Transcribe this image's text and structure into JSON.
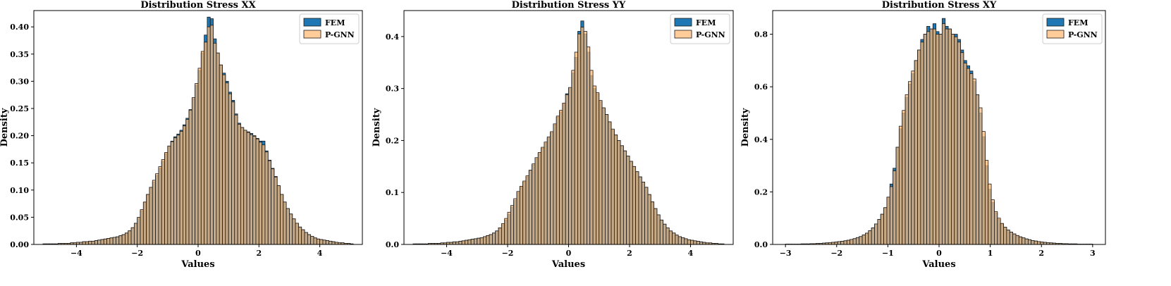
{
  "colors": {
    "FEM": "#1f77b4",
    "P-GNN": "#ffbb78",
    "edge": "#1a1a1a"
  },
  "chart_data": [
    {
      "type": "bar",
      "subtype": "overlaid-histogram",
      "title": "Distribution Stress XX",
      "xlabel": "Values",
      "ylabel": "Density",
      "xlim": [
        -5.4,
        5.4
      ],
      "ylim": [
        0,
        0.43
      ],
      "xticks": [
        "−4",
        "−2",
        "0",
        "2",
        "4"
      ],
      "xtick_values": [
        -4,
        -2,
        0,
        2,
        4
      ],
      "yticks": [
        "0.00",
        "0.05",
        "0.10",
        "0.15",
        "0.20",
        "0.25",
        "0.30",
        "0.35",
        "0.40"
      ],
      "ytick_values": [
        0,
        0.05,
        0.1,
        0.15,
        0.2,
        0.25,
        0.3,
        0.35,
        0.4
      ],
      "legend": [
        "FEM",
        "P-GNN"
      ],
      "legend_position": "top-right",
      "grid": false,
      "bins": {
        "start": -5.1,
        "width": 0.1,
        "count": 102
      },
      "series": [
        {
          "name": "FEM",
          "values": [
            0.001,
            0.001,
            0.001,
            0.001,
            0.001,
            0.002,
            0.002,
            0.002,
            0.002,
            0.003,
            0.003,
            0.004,
            0.004,
            0.005,
            0.005,
            0.006,
            0.006,
            0.007,
            0.008,
            0.009,
            0.01,
            0.011,
            0.012,
            0.013,
            0.014,
            0.016,
            0.018,
            0.021,
            0.025,
            0.03,
            0.038,
            0.048,
            0.062,
            0.077,
            0.092,
            0.105,
            0.115,
            0.127,
            0.14,
            0.153,
            0.167,
            0.18,
            0.19,
            0.198,
            0.203,
            0.21,
            0.22,
            0.232,
            0.248,
            0.268,
            0.293,
            0.32,
            0.352,
            0.385,
            0.418,
            0.415,
            0.378,
            0.352,
            0.33,
            0.315,
            0.3,
            0.28,
            0.265,
            0.24,
            0.223,
            0.215,
            0.21,
            0.207,
            0.204,
            0.2,
            0.195,
            0.19,
            0.19,
            0.172,
            0.155,
            0.14,
            0.125,
            0.108,
            0.092,
            0.078,
            0.066,
            0.056,
            0.047,
            0.039,
            0.032,
            0.027,
            0.022,
            0.018,
            0.015,
            0.012,
            0.01,
            0.009,
            0.008,
            0.007,
            0.006,
            0.005,
            0.004,
            0.003,
            0.003,
            0.002,
            0.002,
            0.001
          ]
        },
        {
          "name": "P-GNN",
          "values": [
            0.001,
            0.001,
            0.001,
            0.001,
            0.001,
            0.002,
            0.002,
            0.002,
            0.002,
            0.003,
            0.003,
            0.004,
            0.004,
            0.005,
            0.005,
            0.006,
            0.006,
            0.007,
            0.008,
            0.009,
            0.01,
            0.011,
            0.012,
            0.013,
            0.014,
            0.016,
            0.018,
            0.021,
            0.025,
            0.031,
            0.039,
            0.05,
            0.064,
            0.078,
            0.092,
            0.105,
            0.118,
            0.13,
            0.143,
            0.156,
            0.169,
            0.181,
            0.189,
            0.196,
            0.201,
            0.208,
            0.218,
            0.23,
            0.247,
            0.27,
            0.296,
            0.324,
            0.355,
            0.372,
            0.4,
            0.403,
            0.37,
            0.352,
            0.33,
            0.312,
            0.297,
            0.277,
            0.262,
            0.238,
            0.221,
            0.215,
            0.21,
            0.206,
            0.202,
            0.199,
            0.194,
            0.188,
            0.183,
            0.17,
            0.154,
            0.139,
            0.124,
            0.108,
            0.092,
            0.078,
            0.066,
            0.056,
            0.047,
            0.039,
            0.032,
            0.027,
            0.022,
            0.018,
            0.015,
            0.012,
            0.01,
            0.009,
            0.008,
            0.007,
            0.006,
            0.005,
            0.004,
            0.003,
            0.003,
            0.002,
            0.002,
            0.001
          ]
        }
      ]
    },
    {
      "type": "bar",
      "subtype": "overlaid-histogram",
      "title": "Distribution Stress YY",
      "xlabel": "Values",
      "ylabel": "Density",
      "xlim": [
        -5.4,
        5.4
      ],
      "ylim": [
        0,
        0.45
      ],
      "xticks": [
        "−4",
        "−2",
        "0",
        "2",
        "4"
      ],
      "xtick_values": [
        -4,
        -2,
        0,
        2,
        4
      ],
      "yticks": [
        "0.0",
        "0.1",
        "0.2",
        "0.3",
        "0.4"
      ],
      "ytick_values": [
        0,
        0.1,
        0.2,
        0.3,
        0.4
      ],
      "legend": [
        "FEM",
        "P-GNN"
      ],
      "legend_position": "top-right",
      "grid": false,
      "bins": {
        "start": -5.1,
        "width": 0.1,
        "count": 102
      },
      "series": [
        {
          "name": "FEM",
          "values": [
            0.001,
            0.001,
            0.001,
            0.001,
            0.001,
            0.002,
            0.002,
            0.002,
            0.002,
            0.003,
            0.003,
            0.004,
            0.004,
            0.005,
            0.005,
            0.006,
            0.007,
            0.008,
            0.009,
            0.01,
            0.011,
            0.012,
            0.013,
            0.015,
            0.017,
            0.019,
            0.022,
            0.026,
            0.031,
            0.038,
            0.047,
            0.058,
            0.072,
            0.085,
            0.1,
            0.11,
            0.12,
            0.13,
            0.142,
            0.153,
            0.165,
            0.175,
            0.185,
            0.195,
            0.205,
            0.215,
            0.23,
            0.245,
            0.255,
            0.27,
            0.29,
            0.3,
            0.33,
            0.36,
            0.41,
            0.43,
            0.405,
            0.37,
            0.325,
            0.3,
            0.29,
            0.275,
            0.262,
            0.25,
            0.235,
            0.22,
            0.21,
            0.2,
            0.19,
            0.18,
            0.17,
            0.16,
            0.15,
            0.14,
            0.13,
            0.12,
            0.11,
            0.096,
            0.082,
            0.069,
            0.057,
            0.047,
            0.039,
            0.032,
            0.026,
            0.022,
            0.018,
            0.015,
            0.013,
            0.011,
            0.009,
            0.008,
            0.007,
            0.006,
            0.005,
            0.004,
            0.003,
            0.003,
            0.002,
            0.002,
            0.001,
            0.001
          ]
        },
        {
          "name": "P-GNN",
          "values": [
            0.001,
            0.001,
            0.001,
            0.001,
            0.001,
            0.002,
            0.002,
            0.002,
            0.002,
            0.003,
            0.003,
            0.004,
            0.004,
            0.005,
            0.005,
            0.006,
            0.007,
            0.008,
            0.009,
            0.01,
            0.011,
            0.012,
            0.013,
            0.015,
            0.017,
            0.019,
            0.022,
            0.026,
            0.032,
            0.04,
            0.05,
            0.062,
            0.075,
            0.088,
            0.102,
            0.112,
            0.122,
            0.132,
            0.143,
            0.155,
            0.167,
            0.177,
            0.187,
            0.197,
            0.207,
            0.217,
            0.232,
            0.247,
            0.258,
            0.272,
            0.288,
            0.302,
            0.335,
            0.37,
            0.405,
            0.418,
            0.41,
            0.38,
            0.335,
            0.305,
            0.292,
            0.277,
            0.263,
            0.25,
            0.236,
            0.222,
            0.211,
            0.2,
            0.19,
            0.18,
            0.17,
            0.16,
            0.15,
            0.14,
            0.13,
            0.12,
            0.11,
            0.096,
            0.082,
            0.069,
            0.057,
            0.047,
            0.039,
            0.032,
            0.026,
            0.022,
            0.018,
            0.015,
            0.013,
            0.011,
            0.009,
            0.008,
            0.007,
            0.006,
            0.005,
            0.004,
            0.003,
            0.003,
            0.002,
            0.002,
            0.001,
            0.001
          ]
        }
      ]
    },
    {
      "type": "bar",
      "subtype": "overlaid-histogram",
      "title": "Distribution Stress XY",
      "xlabel": "Values",
      "ylabel": "Density",
      "xlim": [
        -3.25,
        3.25
      ],
      "ylim": [
        0,
        0.89
      ],
      "xticks": [
        "−3",
        "−2",
        "−1",
        "0",
        "1",
        "2",
        "3"
      ],
      "xtick_values": [
        -3,
        -2,
        -1,
        0,
        1,
        2,
        3
      ],
      "yticks": [
        "0.0",
        "0.2",
        "0.4",
        "0.6",
        "0.8"
      ],
      "ytick_values": [
        0,
        0.2,
        0.4,
        0.6,
        0.8
      ],
      "legend": [
        "FEM",
        "P-GNN"
      ],
      "legend_position": "top-right",
      "grid": false,
      "bins": {
        "start": -3.0,
        "width": 0.06,
        "count": 100
      },
      "series": [
        {
          "name": "FEM",
          "values": [
            0.001,
            0.001,
            0.001,
            0.001,
            0.001,
            0.002,
            0.002,
            0.002,
            0.003,
            0.003,
            0.004,
            0.004,
            0.005,
            0.006,
            0.007,
            0.008,
            0.009,
            0.011,
            0.012,
            0.014,
            0.016,
            0.019,
            0.022,
            0.026,
            0.03,
            0.036,
            0.043,
            0.052,
            0.063,
            0.078,
            0.095,
            0.115,
            0.14,
            0.18,
            0.23,
            0.29,
            0.37,
            0.44,
            0.5,
            0.56,
            0.61,
            0.65,
            0.7,
            0.74,
            0.78,
            0.8,
            0.83,
            0.82,
            0.84,
            0.81,
            0.8,
            0.86,
            0.83,
            0.82,
            0.8,
            0.8,
            0.78,
            0.74,
            0.7,
            0.68,
            0.66,
            0.62,
            0.57,
            0.5,
            0.41,
            0.3,
            0.21,
            0.16,
            0.12,
            0.095,
            0.078,
            0.065,
            0.055,
            0.047,
            0.04,
            0.034,
            0.029,
            0.025,
            0.021,
            0.018,
            0.015,
            0.013,
            0.011,
            0.009,
            0.008,
            0.007,
            0.006,
            0.005,
            0.004,
            0.004,
            0.003,
            0.003,
            0.002,
            0.002,
            0.002,
            0.001,
            0.001,
            0.001,
            0.001,
            0.001
          ]
        },
        {
          "name": "P-GNN",
          "values": [
            0.001,
            0.001,
            0.001,
            0.001,
            0.001,
            0.002,
            0.002,
            0.002,
            0.003,
            0.003,
            0.004,
            0.004,
            0.005,
            0.006,
            0.007,
            0.008,
            0.009,
            0.011,
            0.012,
            0.014,
            0.016,
            0.019,
            0.022,
            0.026,
            0.03,
            0.036,
            0.043,
            0.052,
            0.063,
            0.078,
            0.095,
            0.115,
            0.14,
            0.18,
            0.22,
            0.28,
            0.37,
            0.45,
            0.51,
            0.57,
            0.62,
            0.66,
            0.7,
            0.74,
            0.77,
            0.8,
            0.81,
            0.82,
            0.82,
            0.8,
            0.8,
            0.84,
            0.82,
            0.82,
            0.8,
            0.79,
            0.77,
            0.73,
            0.69,
            0.67,
            0.65,
            0.63,
            0.57,
            0.52,
            0.43,
            0.32,
            0.23,
            0.17,
            0.125,
            0.1,
            0.08,
            0.066,
            0.055,
            0.047,
            0.04,
            0.034,
            0.029,
            0.025,
            0.021,
            0.018,
            0.015,
            0.013,
            0.011,
            0.009,
            0.008,
            0.007,
            0.006,
            0.005,
            0.004,
            0.004,
            0.003,
            0.003,
            0.002,
            0.002,
            0.002,
            0.001,
            0.001,
            0.001,
            0.001,
            0.001
          ]
        }
      ]
    }
  ]
}
